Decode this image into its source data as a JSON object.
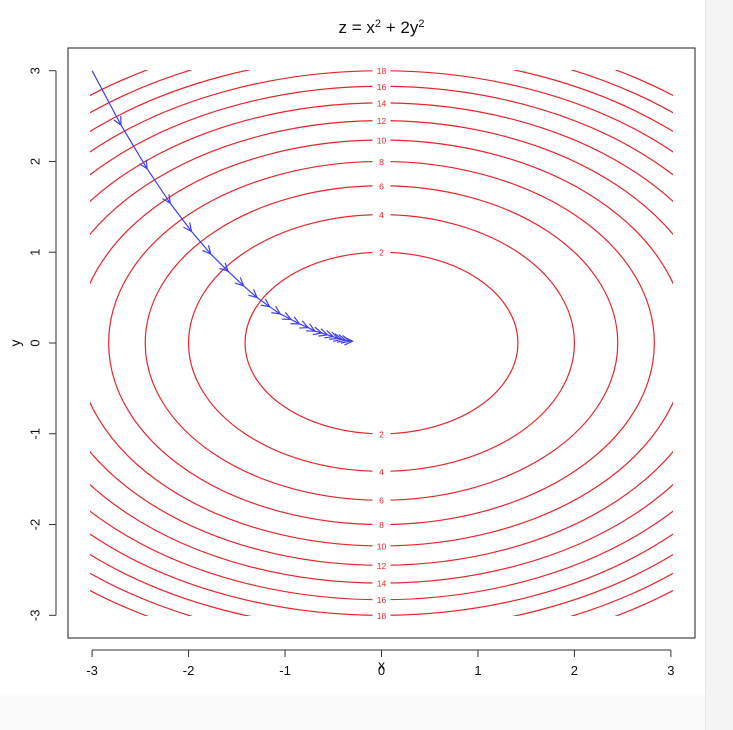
{
  "chart_data": {
    "type": "contour",
    "title": "z = x² + 2y²",
    "xlabel": "x",
    "ylabel": "y",
    "xlim": [
      -3.25,
      3.25
    ],
    "ylim": [
      -3.25,
      3.25
    ],
    "x_ticks": [
      "-3",
      "-2",
      "-1",
      "0",
      "1",
      "2",
      "3"
    ],
    "y_ticks": [
      "-3",
      "-2",
      "-1",
      "0",
      "1",
      "2",
      "3"
    ],
    "contour_levels": [
      2,
      4,
      6,
      8,
      10,
      12,
      14,
      16,
      18,
      20,
      22,
      24
    ],
    "contour_color": "#e8252b",
    "path_color": "#3f3ff0",
    "grid": false,
    "descent_path": [
      [
        -3.0,
        3.0
      ],
      [
        -2.7,
        2.4
      ],
      [
        -2.43,
        1.92
      ],
      [
        -2.19,
        1.54
      ],
      [
        -1.97,
        1.23
      ],
      [
        -1.77,
        0.98
      ],
      [
        -1.59,
        0.79
      ],
      [
        -1.43,
        0.63
      ],
      [
        -1.29,
        0.5
      ],
      [
        -1.16,
        0.4
      ],
      [
        -1.05,
        0.32
      ],
      [
        -0.94,
        0.26
      ],
      [
        -0.85,
        0.21
      ],
      [
        -0.76,
        0.17
      ],
      [
        -0.69,
        0.13
      ],
      [
        -0.62,
        0.11
      ],
      [
        -0.56,
        0.09
      ],
      [
        -0.5,
        0.07
      ],
      [
        -0.45,
        0.05
      ],
      [
        -0.41,
        0.04
      ],
      [
        -0.37,
        0.03
      ],
      [
        -0.33,
        0.02
      ],
      [
        -0.3,
        0.02
      ]
    ]
  }
}
